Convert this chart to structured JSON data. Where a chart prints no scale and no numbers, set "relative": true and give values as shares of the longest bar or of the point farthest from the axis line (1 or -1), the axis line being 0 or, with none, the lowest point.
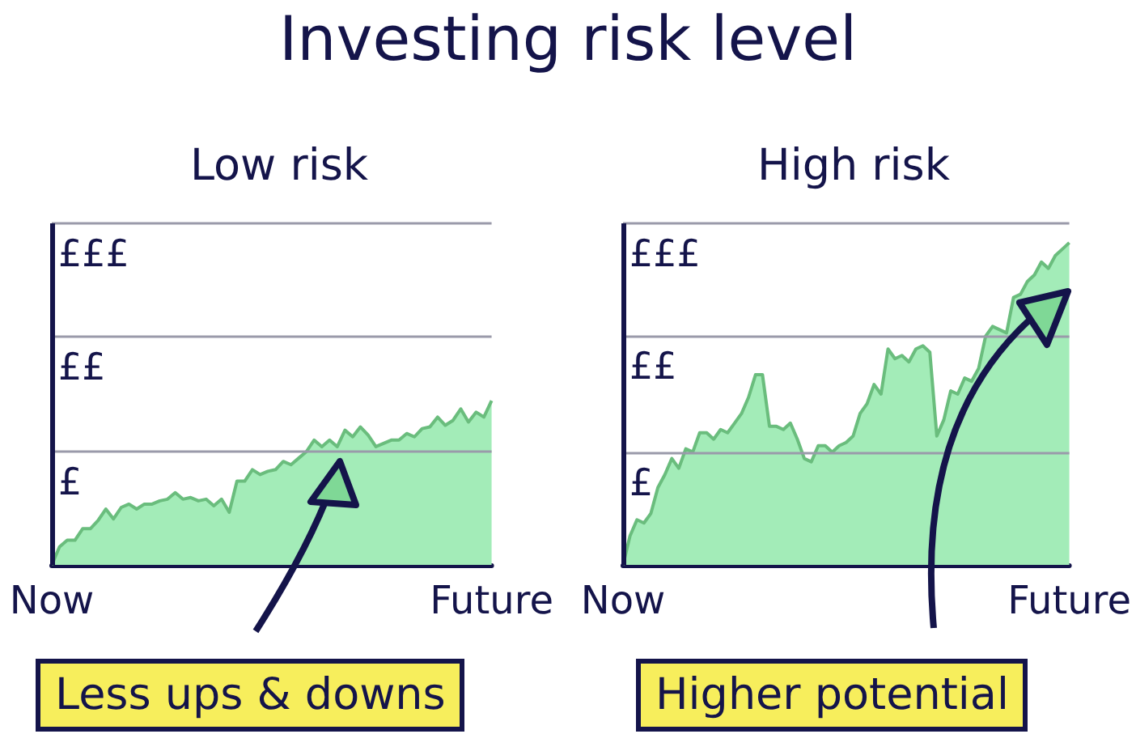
{
  "chart_data": [
    {
      "type": "other",
      "title": "Investing risk level"
    },
    {
      "type": "area",
      "title": "Low risk",
      "relative": true,
      "color": "#a3ecb8",
      "ref_lines": [
        {
          "axis": "y",
          "value": 0.69,
          "label": "£",
          "color": "#9a9aaa"
        },
        {
          "axis": "y",
          "value": 1.39,
          "label": "££",
          "color": "#9a9aaa"
        },
        {
          "axis": "y",
          "value": 2.08,
          "label": "£££",
          "color": "#9a9aaa"
        }
      ],
      "categories": [
        "Now",
        null,
        null,
        null,
        null,
        null,
        null,
        null,
        null,
        null,
        null,
        null,
        null,
        null,
        null,
        null,
        null,
        null,
        null,
        null,
        null,
        null,
        null,
        null,
        null,
        null,
        null,
        null,
        null,
        null,
        null,
        null,
        null,
        null,
        null,
        null,
        null,
        null,
        null,
        null,
        null,
        null,
        null,
        null,
        null,
        null,
        null,
        null,
        null,
        null,
        null,
        null,
        null,
        null,
        null,
        null,
        null,
        "Future"
      ],
      "values": [
        0,
        0.11,
        0.15,
        0.15,
        0.22,
        0.22,
        0.27,
        0.34,
        0.28,
        0.35,
        0.37,
        0.34,
        0.37,
        0.37,
        0.39,
        0.4,
        0.44,
        0.4,
        0.41,
        0.39,
        0.4,
        0.36,
        0.4,
        0.32,
        0.51,
        0.51,
        0.58,
        0.55,
        0.57,
        0.58,
        0.63,
        0.61,
        0.65,
        0.69,
        0.76,
        0.72,
        0.76,
        0.72,
        0.82,
        0.78,
        0.84,
        0.79,
        0.72,
        0.74,
        0.76,
        0.76,
        0.8,
        0.78,
        0.83,
        0.84,
        0.9,
        0.85,
        0.88,
        0.95,
        0.87,
        0.93,
        0.9,
        1
      ],
      "annotations": [
        "Less ups & downs"
      ]
    },
    {
      "type": "area",
      "title": "High risk",
      "relative": true,
      "color": "#a3ecb8",
      "ref_lines": [
        {
          "axis": "y",
          "value": 0.35,
          "label": "£",
          "color": "#9a9aaa"
        },
        {
          "axis": "y",
          "value": 0.71,
          "label": "££",
          "color": "#9a9aaa"
        },
        {
          "axis": "y",
          "value": 1.06,
          "label": "£££",
          "color": "#9a9aaa"
        }
      ],
      "categories": [
        "Now",
        null,
        null,
        null,
        null,
        null,
        null,
        null,
        null,
        null,
        null,
        null,
        null,
        null,
        null,
        null,
        null,
        null,
        null,
        null,
        null,
        null,
        null,
        null,
        null,
        null,
        null,
        null,
        null,
        null,
        null,
        null,
        null,
        null,
        null,
        null,
        null,
        null,
        null,
        null,
        null,
        null,
        null,
        null,
        null,
        null,
        null,
        null,
        null,
        null,
        null,
        null,
        null,
        null,
        null,
        null,
        null,
        null,
        null,
        null,
        null,
        null,
        null,
        null,
        "Future"
      ],
      "values": [
        0,
        0.09,
        0.14,
        0.13,
        0.16,
        0.24,
        0.28,
        0.33,
        0.3,
        0.36,
        0.35,
        0.41,
        0.41,
        0.39,
        0.42,
        0.41,
        0.44,
        0.47,
        0.52,
        0.59,
        0.59,
        0.43,
        0.43,
        0.42,
        0.44,
        0.39,
        0.33,
        0.32,
        0.37,
        0.37,
        0.35,
        0.37,
        0.38,
        0.4,
        0.47,
        0.5,
        0.56,
        0.53,
        0.67,
        0.64,
        0.65,
        0.63,
        0.67,
        0.68,
        0.66,
        0.4,
        0.45,
        0.54,
        0.53,
        0.58,
        0.57,
        0.61,
        0.71,
        0.74,
        0.73,
        0.72,
        0.83,
        0.84,
        0.88,
        0.9,
        0.94,
        0.92,
        0.96,
        0.98,
        1
      ],
      "annotations": [
        "Higher potential"
      ]
    }
  ]
}
